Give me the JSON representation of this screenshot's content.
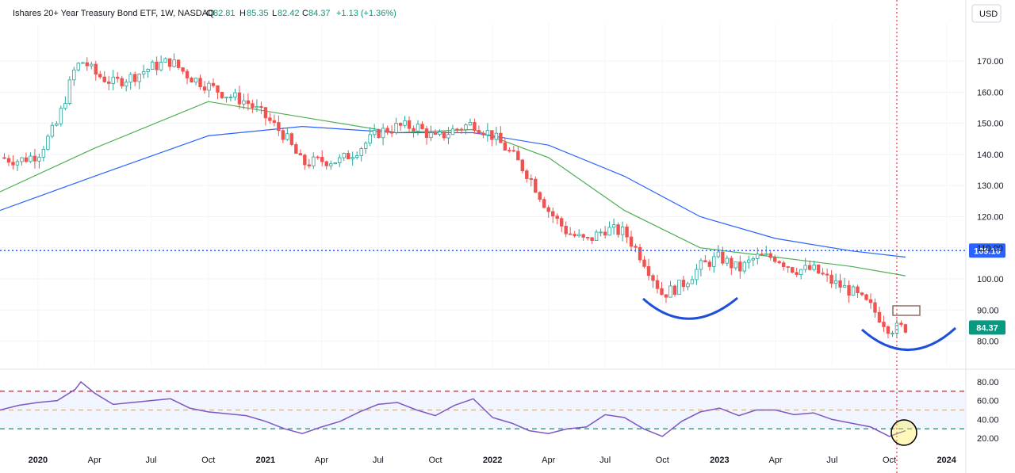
{
  "header": {
    "symbol": "Ishares 20+ Year Treasury Bond ETF, 1W, NASDAQ",
    "o_label": "O",
    "o_value": "82.81",
    "h_label": "H",
    "h_value": "85.35",
    "l_label": "L",
    "l_value": "82.42",
    "c_label": "C",
    "c_value": "84.37",
    "change": "+1.13 (+1.36%)"
  },
  "currency": "USD",
  "colors": {
    "up": "#26a69a",
    "down": "#ef5350",
    "ma_short": "#f23645",
    "ma_20": "#ff9800",
    "ma_50": "#ffeb3b",
    "ma_100": "#4caf50",
    "ma_200": "#2962ff",
    "ref_line": "#2962ff",
    "rsi": "#7e57c2",
    "arc": "#1e4fd8",
    "current_tag": "#089981"
  },
  "chart_data": [
    {
      "type": "candlestick",
      "timeframe": "1W",
      "x_tick_labels": [
        "2020",
        "Apr",
        "Jul",
        "Oct",
        "2021",
        "Apr",
        "Jul",
        "Oct",
        "2022",
        "Apr",
        "Jul",
        "Oct",
        "2023",
        "Apr",
        "Jul",
        "Oct",
        "2024"
      ],
      "y_tick_labels": [
        "170.00",
        "160.00",
        "150.00",
        "140.00",
        "130.00",
        "120.00",
        "110.00",
        "100.00",
        "90.00",
        "80.00"
      ],
      "ylim": [
        72,
        182
      ],
      "close_path": [
        [
          "2019-11-01",
          139
        ],
        [
          "2019-12-01",
          138
        ],
        [
          "2020-01-01",
          140
        ],
        [
          "2020-02-01",
          150
        ],
        [
          "2020-03-01",
          168
        ],
        [
          "2020-03-15",
          170
        ],
        [
          "2020-04-01",
          166
        ],
        [
          "2020-05-01",
          163
        ],
        [
          "2020-06-01",
          165
        ],
        [
          "2020-07-01",
          168
        ],
        [
          "2020-08-01",
          170
        ],
        [
          "2020-09-01",
          165
        ],
        [
          "2020-10-01",
          162
        ],
        [
          "2020-11-01",
          159
        ],
        [
          "2020-12-01",
          157
        ],
        [
          "2021-01-01",
          152
        ],
        [
          "2021-02-01",
          146
        ],
        [
          "2021-03-01",
          137
        ],
        [
          "2021-04-01",
          138
        ],
        [
          "2021-05-01",
          138
        ],
        [
          "2021-06-01",
          142
        ],
        [
          "2021-07-01",
          147
        ],
        [
          "2021-08-01",
          149
        ],
        [
          "2021-09-01",
          149
        ],
        [
          "2021-10-01",
          145
        ],
        [
          "2021-11-01",
          148
        ],
        [
          "2021-12-01",
          150
        ],
        [
          "2022-01-01",
          146
        ],
        [
          "2022-02-01",
          140
        ],
        [
          "2022-03-01",
          133
        ],
        [
          "2022-04-01",
          122
        ],
        [
          "2022-05-01",
          115
        ],
        [
          "2022-06-01",
          112
        ],
        [
          "2022-07-01",
          116
        ],
        [
          "2022-08-01",
          115
        ],
        [
          "2022-09-01",
          106
        ],
        [
          "2022-10-01",
          95
        ],
        [
          "2022-11-01",
          98
        ],
        [
          "2022-12-01",
          104
        ],
        [
          "2023-01-01",
          107
        ],
        [
          "2023-02-01",
          103
        ],
        [
          "2023-03-01",
          107
        ],
        [
          "2023-04-01",
          107
        ],
        [
          "2023-05-01",
          103
        ],
        [
          "2023-06-01",
          103
        ],
        [
          "2023-07-01",
          99
        ],
        [
          "2023-08-01",
          96
        ],
        [
          "2023-09-01",
          91
        ],
        [
          "2023-10-01",
          84
        ],
        [
          "2023-10-27",
          84.37
        ]
      ],
      "moving_averages": [
        {
          "name": "",
          "points": [
            [
              "2019-11-01",
              128
            ],
            [
              "2020-04-01",
              142
            ],
            [
              "2020-10-01",
              157
            ],
            [
              "2021-03-01",
              152
            ],
            [
              "2021-08-01",
              147
            ],
            [
              "2021-12-01",
              148
            ],
            [
              "2022-04-01",
              139
            ],
            [
              "2022-08-01",
              122
            ],
            [
              "2022-12-01",
              110
            ],
            [
              "2023-04-01",
              107
            ],
            [
              "2023-08-01",
              104
            ],
            [
              "2023-10-27",
              101
            ]
          ]
        },
        {
          "name": "",
          "points": [
            [
              "2019-11-01",
              122
            ],
            [
              "2020-04-01",
              133
            ],
            [
              "2020-10-01",
              146
            ],
            [
              "2021-03-01",
              149
            ],
            [
              "2021-08-01",
              147
            ],
            [
              "2021-12-01",
              147
            ],
            [
              "2022-04-01",
              143
            ],
            [
              "2022-08-01",
              133
            ],
            [
              "2022-12-01",
              120
            ],
            [
              "2023-04-01",
              113
            ],
            [
              "2023-08-01",
              109
            ],
            [
              "2023-10-27",
              107
            ]
          ]
        }
      ],
      "reference_line": {
        "value": 109.1,
        "label": "109.10"
      },
      "current_price_label": "84.37"
    },
    {
      "type": "line",
      "name": "",
      "y_tick_labels": [
        "80.00",
        "60.00",
        "40.00",
        "20.00"
      ],
      "ylim": [
        10,
        90
      ],
      "levels": [
        70,
        50,
        30
      ],
      "points": [
        [
          "2019-11-01",
          50
        ],
        [
          "2019-12-01",
          55
        ],
        [
          "2020-01-01",
          58
        ],
        [
          "2020-02-01",
          60
        ],
        [
          "2020-03-01",
          72
        ],
        [
          "2020-03-10",
          80
        ],
        [
          "2020-04-01",
          68
        ],
        [
          "2020-05-01",
          56
        ],
        [
          "2020-06-01",
          58
        ],
        [
          "2020-07-01",
          60
        ],
        [
          "2020-08-01",
          62
        ],
        [
          "2020-09-01",
          52
        ],
        [
          "2020-10-01",
          48
        ],
        [
          "2020-11-01",
          46
        ],
        [
          "2020-12-01",
          44
        ],
        [
          "2021-01-01",
          38
        ],
        [
          "2021-02-01",
          30
        ],
        [
          "2021-03-01",
          25
        ],
        [
          "2021-04-01",
          32
        ],
        [
          "2021-05-01",
          38
        ],
        [
          "2021-06-01",
          48
        ],
        [
          "2021-07-01",
          56
        ],
        [
          "2021-08-01",
          58
        ],
        [
          "2021-09-01",
          50
        ],
        [
          "2021-10-01",
          44
        ],
        [
          "2021-11-01",
          55
        ],
        [
          "2021-12-01",
          62
        ],
        [
          "2022-01-01",
          42
        ],
        [
          "2022-02-01",
          36
        ],
        [
          "2022-03-01",
          28
        ],
        [
          "2022-04-01",
          25
        ],
        [
          "2022-05-01",
          30
        ],
        [
          "2022-06-01",
          32
        ],
        [
          "2022-07-01",
          45
        ],
        [
          "2022-08-01",
          42
        ],
        [
          "2022-09-01",
          30
        ],
        [
          "2022-10-01",
          22
        ],
        [
          "2022-11-01",
          38
        ],
        [
          "2022-12-01",
          48
        ],
        [
          "2023-01-01",
          52
        ],
        [
          "2023-02-01",
          44
        ],
        [
          "2023-03-01",
          50
        ],
        [
          "2023-04-01",
          50
        ],
        [
          "2023-05-01",
          45
        ],
        [
          "2023-06-01",
          47
        ],
        [
          "2023-07-01",
          40
        ],
        [
          "2023-08-01",
          36
        ],
        [
          "2023-09-01",
          32
        ],
        [
          "2023-10-01",
          22
        ],
        [
          "2023-10-27",
          28
        ]
      ]
    }
  ]
}
